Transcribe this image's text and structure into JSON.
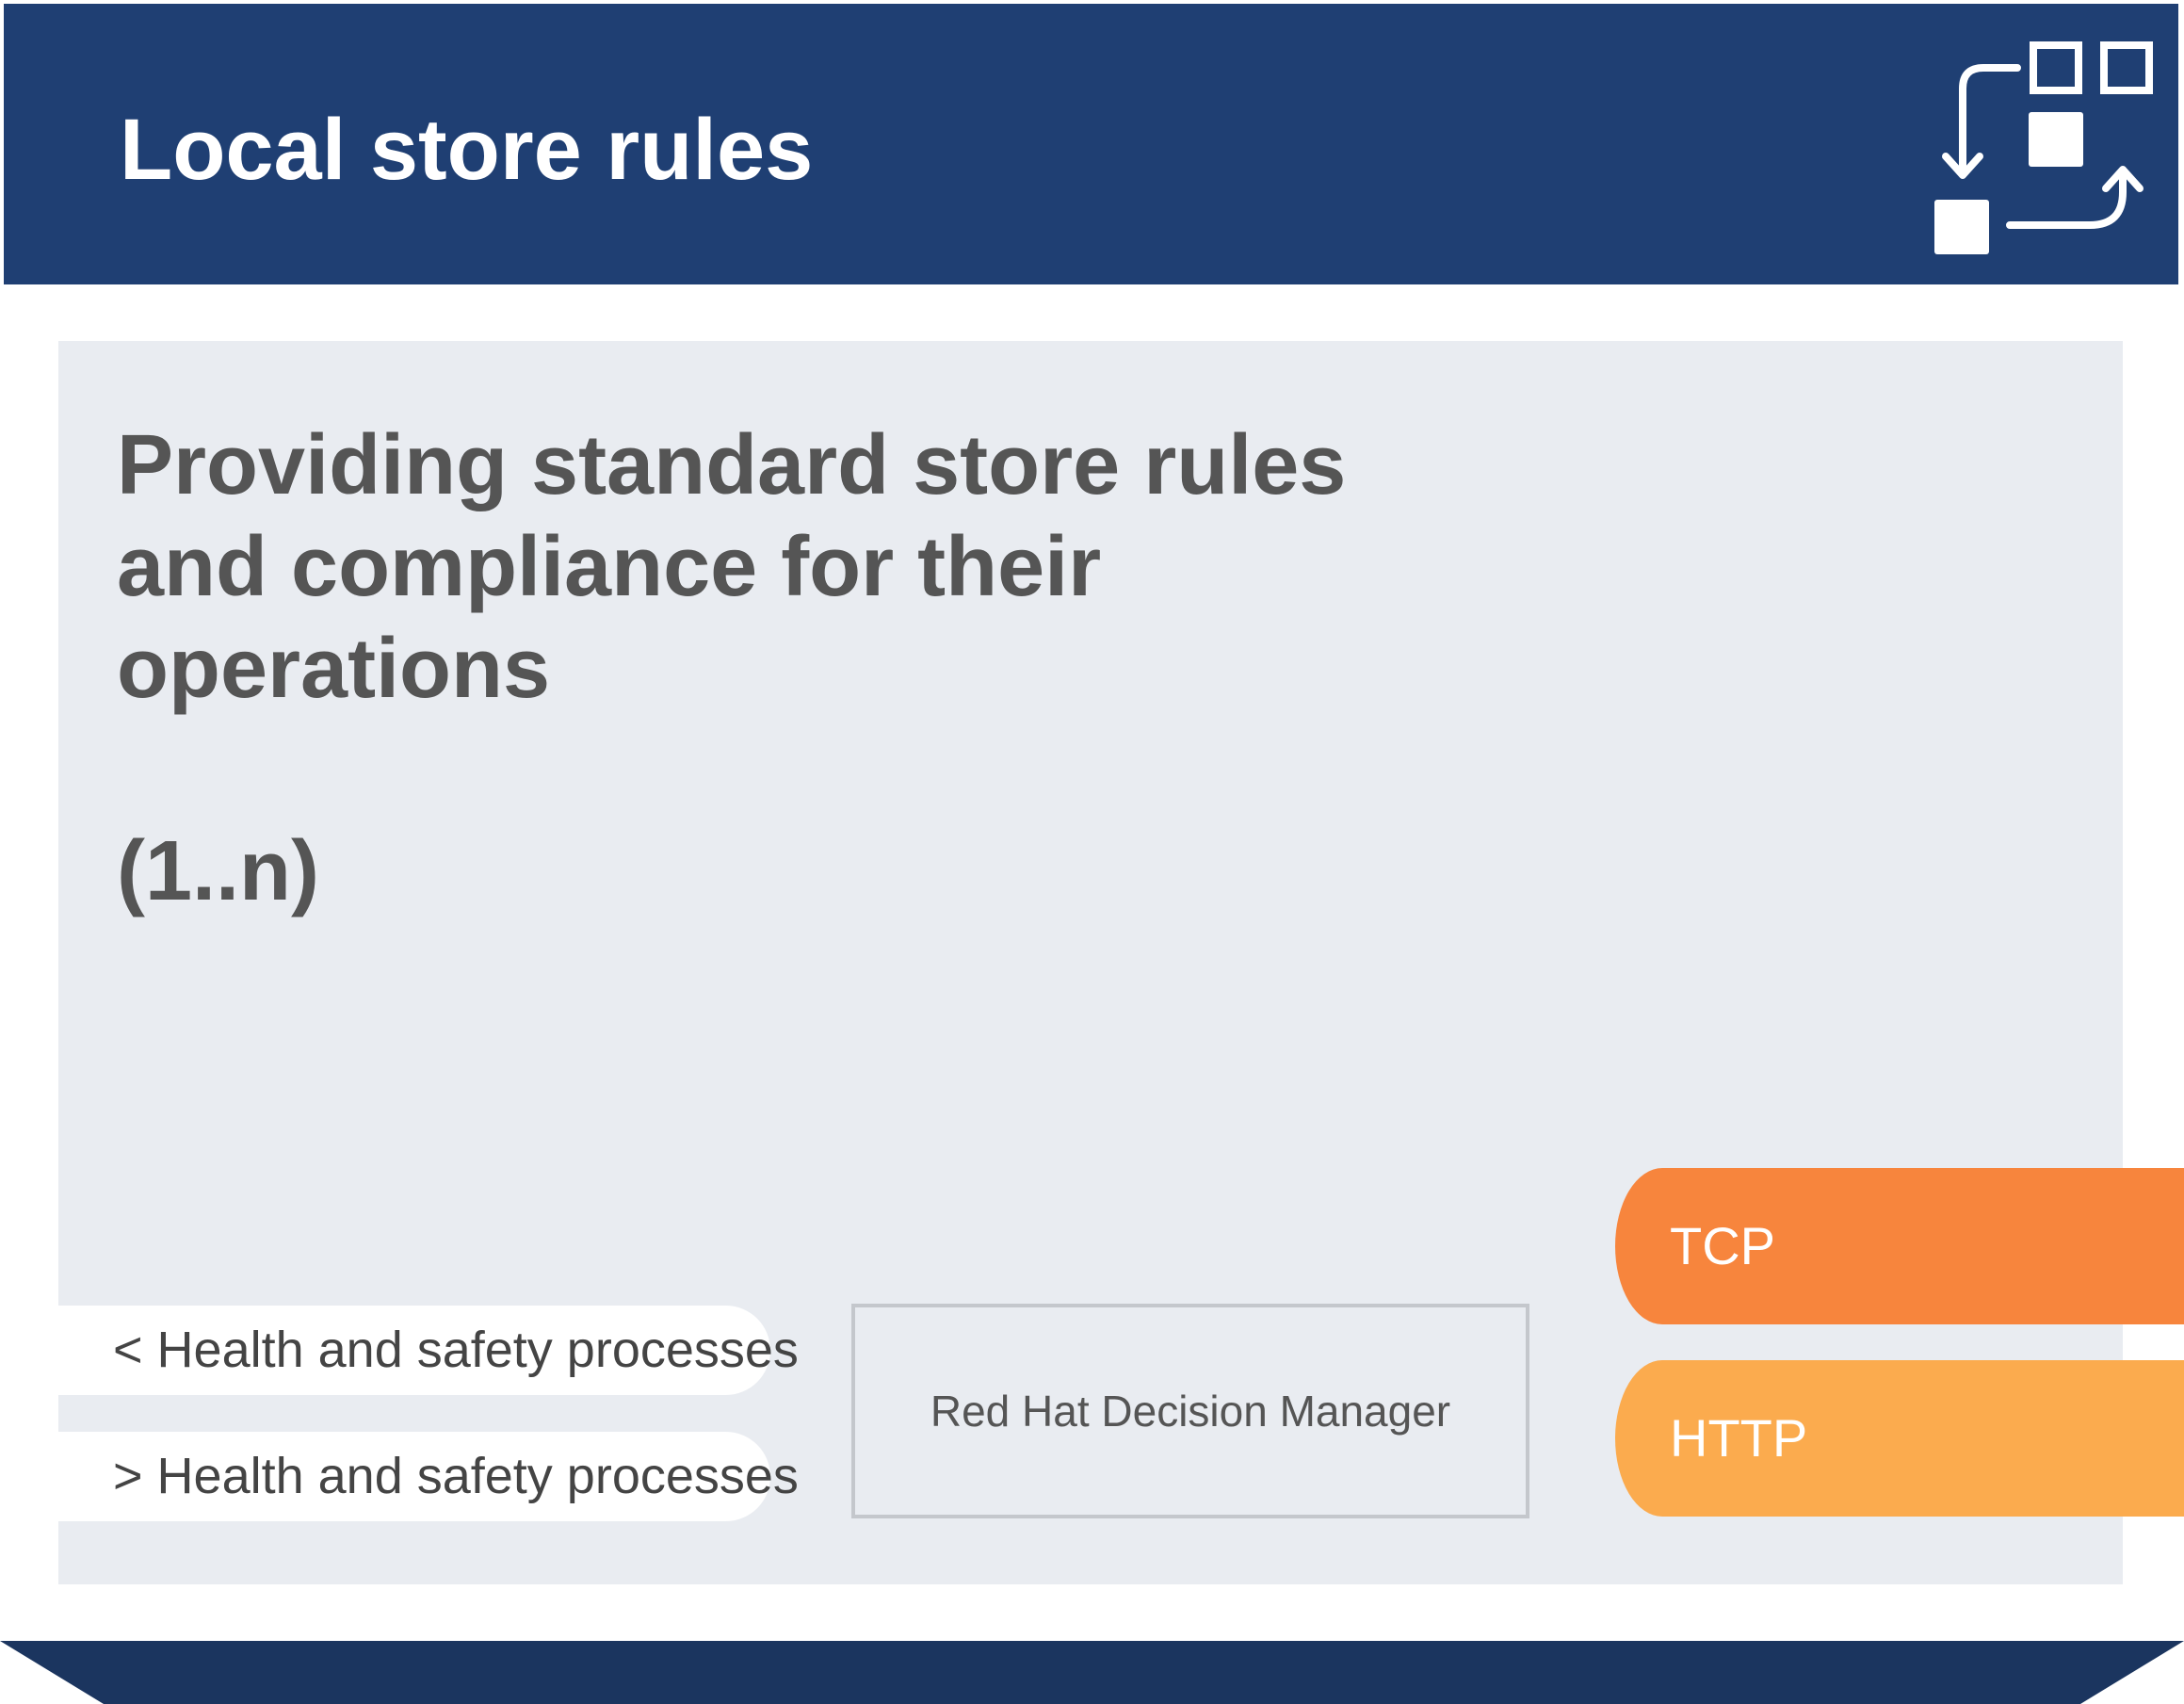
{
  "header": {
    "title": "Local store rules",
    "icon": "process-flow-icon",
    "background": "#1f3f73"
  },
  "panel": {
    "headline_lines": [
      "Providing standard store rules",
      "and compliance for their",
      "operations"
    ],
    "cardinality": "(1..n)"
  },
  "processes": [
    {
      "label": "< Health and safety processes"
    },
    {
      "label": "> Health and safety processes"
    }
  ],
  "component": {
    "label": "Red Hat Decision Manager"
  },
  "protocols": [
    {
      "label": "TCP",
      "color": "#f7853d"
    },
    {
      "label": "HTTP",
      "color": "#fbab4e"
    }
  ],
  "colors": {
    "header": "#1f3f73",
    "panel": "#e9ecf1",
    "text_dark": "#555555",
    "footer": "#1b355f"
  }
}
